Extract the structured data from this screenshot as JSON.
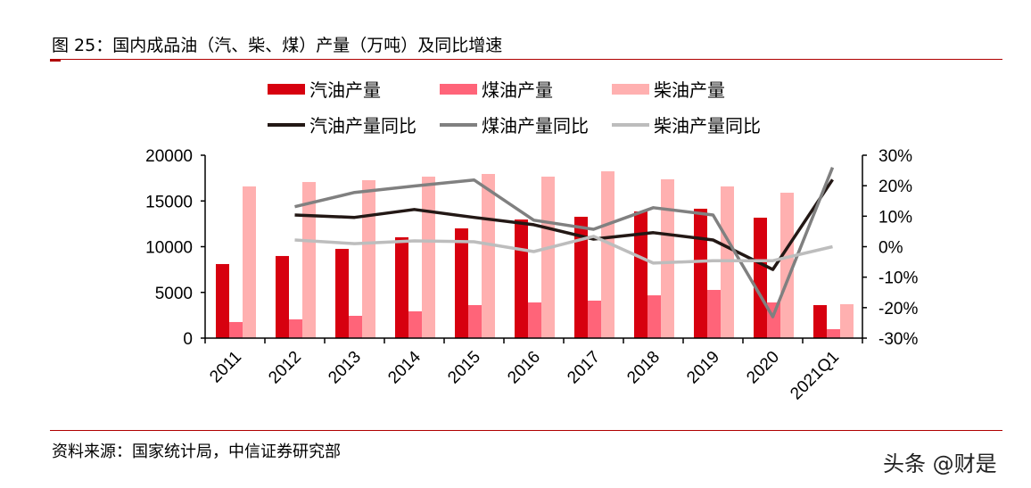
{
  "title": "图 25：国内成品油（汽、柴、煤）产量（万吨）及同比增速",
  "source": "资料来源：国家统计局，中信证券研究部",
  "watermark": "头条 @财是",
  "chart_data": {
    "type": "bar+line",
    "title": "图 25：国内成品油（汽、柴、煤）产量（万吨）及同比增速",
    "categories": [
      "2011",
      "2012",
      "2013",
      "2014",
      "2015",
      "2016",
      "2017",
      "2018",
      "2019",
      "2020",
      "2021Q1"
    ],
    "left_axis": {
      "ylim": [
        0,
        20000
      ],
      "ticks": [
        0,
        5000,
        10000,
        15000,
        20000
      ]
    },
    "right_axis": {
      "ylim": [
        -30,
        30
      ],
      "ticks": [
        "-30%",
        "-20%",
        "-10%",
        "0%",
        "10%",
        "20%",
        "30%"
      ],
      "unit": "%"
    },
    "grid": false,
    "legend_placement": "top",
    "bar_series": [
      {
        "name": "汽油产量",
        "color": "#D7000F",
        "values": [
          8100,
          8980,
          9760,
          11030,
          12000,
          12970,
          13270,
          13850,
          14150,
          13170,
          3610
        ]
      },
      {
        "name": "煤油产量",
        "color": "#FF6479",
        "values": [
          1760,
          2050,
          2440,
          2930,
          3610,
          3900,
          4100,
          4680,
          5270,
          3900,
          980
        ]
      },
      {
        "name": "柴油产量",
        "color": "#FFB0B0",
        "values": [
          16590,
          17070,
          17270,
          17660,
          17950,
          17660,
          18240,
          17370,
          16590,
          15900,
          3710
        ]
      }
    ],
    "line_series": [
      {
        "name": "汽油产量同比",
        "color": "#231815",
        "values": [
          null,
          10.4,
          9.6,
          12.2,
          9.6,
          7.2,
          2.5,
          4.6,
          2.2,
          -7.5,
          22
        ]
      },
      {
        "name": "煤油产量同比",
        "color": "#808080",
        "values": [
          null,
          13.1,
          17.8,
          19.9,
          21.9,
          8.7,
          5.7,
          12.8,
          10.4,
          -23,
          26
        ]
      },
      {
        "name": "柴油产量同比",
        "color": "#BDBDBD",
        "values": [
          null,
          2.2,
          1.0,
          1.9,
          1.6,
          -1.6,
          3.4,
          -5.4,
          -4.6,
          -4.6,
          0
        ]
      }
    ]
  }
}
